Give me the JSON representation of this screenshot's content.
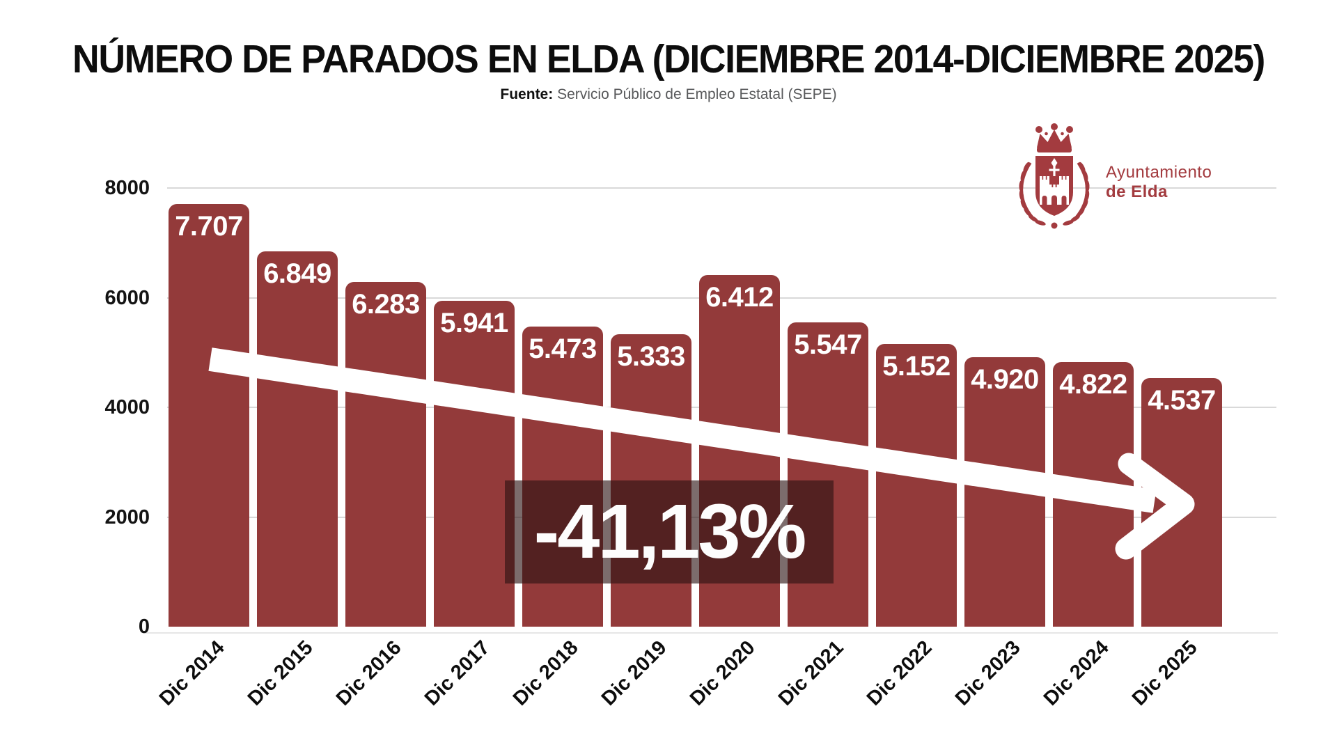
{
  "title": "NÚMERO DE PARADOS EN ELDA (DICIEMBRE 2014-DICIEMBRE 2025)",
  "source": {
    "label": "Fuente:",
    "text": " Servicio Público de Empleo Estatal (SEPE)"
  },
  "logo": {
    "line1": "Ayuntamiento",
    "line2": "de Elda"
  },
  "annotation": {
    "change_label": "-41,13%"
  },
  "colors": {
    "bar": "#933a3a",
    "grid": "#d9d9d9",
    "overlay": "rgba(43,17,17,0.62)",
    "arrow": "#ffffff",
    "logo": "#a33b3f"
  },
  "chart_data": {
    "type": "bar",
    "title": "NÚMERO DE PARADOS EN ELDA (DICIEMBRE 2014-DICIEMBRE 2025)",
    "source": "Servicio Público de Empleo Estatal (SEPE)",
    "categories": [
      "Dic 2014",
      "Dic 2015",
      "Dic 2016",
      "Dic 2017",
      "Dic 2018",
      "Dic 2019",
      "Dic 2020",
      "Dic 2021",
      "Dic 2022",
      "Dic 2023",
      "Dic 2024",
      "Dic 2025"
    ],
    "values": [
      7707,
      6849,
      6283,
      5941,
      5473,
      5333,
      6412,
      5547,
      5152,
      4920,
      4822,
      4537
    ],
    "value_labels": [
      "7.707",
      "6.849",
      "6.283",
      "5.941",
      "5.473",
      "5.333",
      "6.412",
      "5.547",
      "5.152",
      "4.920",
      "4.822",
      "4.537"
    ],
    "xlabel": "",
    "ylabel": "",
    "ylim": [
      0,
      8000
    ],
    "yticks": [
      0,
      2000,
      4000,
      6000,
      8000
    ],
    "grid": true,
    "legend": false,
    "bar_color": "#933a3a",
    "trend": {
      "direction": "down",
      "label": "-41,13%",
      "change_pct": -41.13
    }
  }
}
